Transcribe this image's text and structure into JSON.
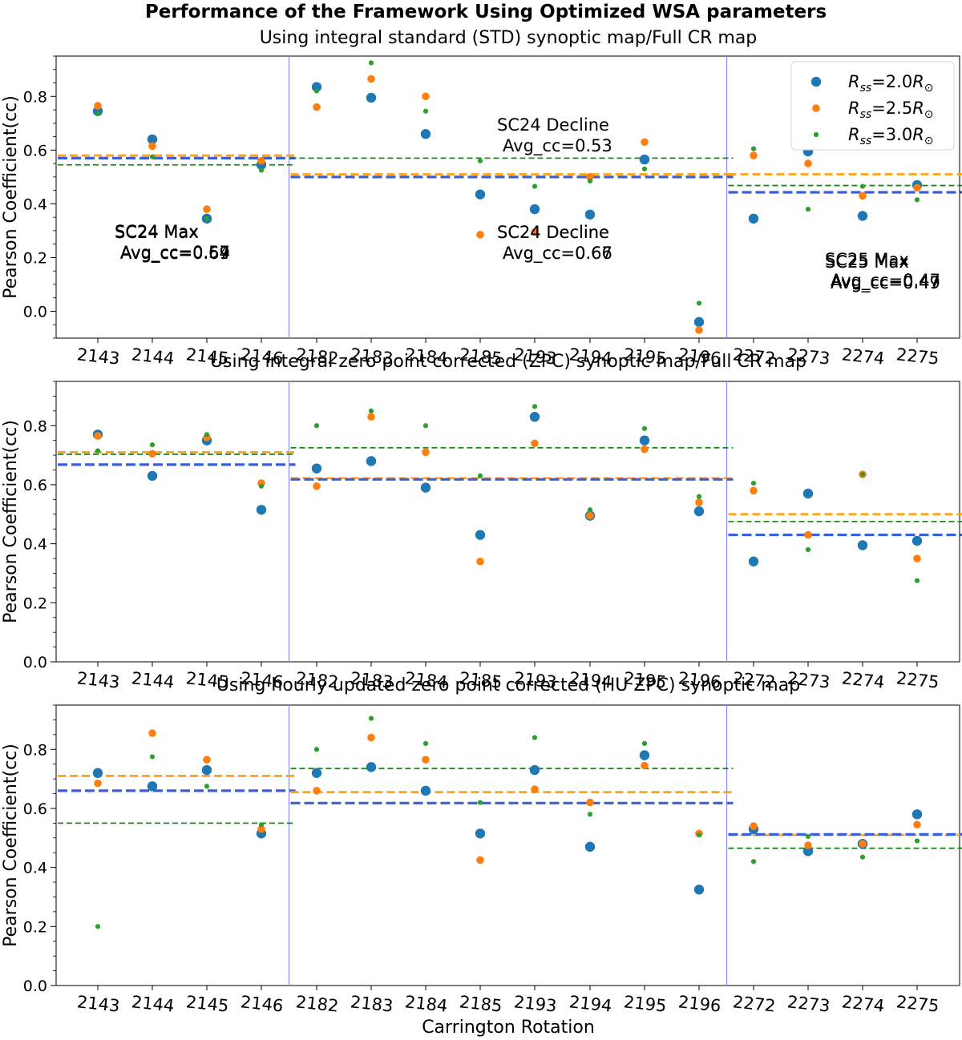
{
  "figure_title": "Performance of the Framework Using Optimized WSA parameters",
  "xlabel": "Carrington Rotation",
  "ylabel": "Pearson Coefficient(cc)",
  "colors": {
    "r20": "#1f77b4",
    "r25": "#ff7f0e",
    "r30": "#2ca02c",
    "mean20": "#3a5fd9",
    "mean25": "#ffa31a",
    "mean30": "#1a8a1a",
    "separator": "#8a8af0"
  },
  "legend": [
    "2.0",
    "2.5",
    "3.0"
  ],
  "legend_position": "top-right",
  "chart_data": [
    {
      "type": "scatter",
      "title": "Using integral standard (STD) synoptic map/Full CR map",
      "ylim": [
        -0.1,
        0.95
      ],
      "yticks": [
        "0.0",
        "0.2",
        "0.4",
        "0.6",
        "0.8"
      ],
      "categories": [
        "2143",
        "2144",
        "2145",
        "2146",
        "2182",
        "2183",
        "2184",
        "2185",
        "2193",
        "2194",
        "2195",
        "2196",
        "2272",
        "2273",
        "2274",
        "2275"
      ],
      "series": [
        {
          "name": "Rss=2.0",
          "values": [
            0.745,
            0.64,
            0.345,
            0.545,
            0.835,
            0.795,
            0.66,
            0.435,
            0.38,
            0.36,
            0.565,
            -0.04,
            0.345,
            0.595,
            0.355,
            0.47
          ]
        },
        {
          "name": "Rss=2.5",
          "values": [
            0.765,
            0.615,
            0.38,
            0.56,
            0.76,
            0.865,
            0.8,
            0.285,
            0.295,
            0.5,
            0.63,
            -0.07,
            0.58,
            0.55,
            0.43,
            0.46
          ]
        },
        {
          "name": "Rss=3.0",
          "values": [
            0.735,
            0.575,
            0.345,
            0.525,
            0.82,
            0.925,
            0.745,
            0.56,
            0.465,
            0.485,
            0.53,
            0.03,
            0.605,
            0.38,
            0.465,
            0.415
          ]
        }
      ],
      "phases": [
        {
          "label": "SC24 Max",
          "avg": "Avg_cc=0.57",
          "mean_values": [
            0.57,
            0.58,
            0.545
          ]
        },
        {
          "label": "SC24 Decline",
          "avg": "Avg_cc=0.53",
          "mean_values": [
            0.5,
            0.51,
            0.57
          ]
        },
        {
          "label": "SC25 Max",
          "avg": "Avg_cc=0.47",
          "mean_values": [
            0.443,
            0.51,
            0.468
          ]
        }
      ]
    },
    {
      "type": "scatter",
      "title": "Using integral zero point corrected (ZPC) synoptic map/Full CR map",
      "ylim": [
        0.0,
        0.95
      ],
      "yticks": [
        "0.0",
        "0.2",
        "0.4",
        "0.6",
        "0.8"
      ],
      "categories": [
        "2143",
        "2144",
        "2145",
        "2146",
        "2182",
        "2183",
        "2184",
        "2185",
        "2193",
        "2194",
        "2195",
        "2196",
        "2272",
        "2273",
        "2274",
        "2275"
      ],
      "series": [
        {
          "name": "Rss=2.0",
          "values": [
            0.77,
            0.63,
            0.75,
            0.515,
            0.655,
            0.68,
            0.59,
            0.43,
            0.83,
            0.495,
            0.75,
            0.51,
            0.34,
            0.57,
            0.395,
            0.41
          ]
        },
        {
          "name": "Rss=2.5",
          "values": [
            0.765,
            0.705,
            0.76,
            0.605,
            0.595,
            0.83,
            0.71,
            0.34,
            0.74,
            0.495,
            0.72,
            0.54,
            0.58,
            0.43,
            0.635,
            0.35
          ]
        },
        {
          "name": "Rss=3.0",
          "values": [
            0.715,
            0.735,
            0.77,
            0.595,
            0.8,
            0.85,
            0.8,
            0.63,
            0.865,
            0.515,
            0.79,
            0.56,
            0.605,
            0.38,
            0.635,
            0.275
          ]
        }
      ],
      "phases": [
        {
          "label": "SC24 Max",
          "avg": "Avg_cc=0.69",
          "mean_values": [
            0.668,
            0.71,
            0.703
          ]
        },
        {
          "label": "SC24 Decline",
          "avg": "Avg_cc=0.66",
          "mean_values": [
            0.618,
            0.622,
            0.725
          ]
        },
        {
          "label": "SC25 Max",
          "avg": "Avg_cc=0.47",
          "mean_values": [
            0.43,
            0.5,
            0.475
          ]
        }
      ]
    },
    {
      "type": "scatter",
      "title": "Using hourly updated zero point corrected (HU ZPC) synoptic map",
      "ylim": [
        0.0,
        0.95
      ],
      "yticks": [
        "0.0",
        "0.2",
        "0.4",
        "0.6",
        "0.8"
      ],
      "categories": [
        "2143",
        "2144",
        "2145",
        "2146",
        "2182",
        "2183",
        "2184",
        "2185",
        "2193",
        "2194",
        "2195",
        "2196",
        "2272",
        "2273",
        "2274",
        "2275"
      ],
      "series": [
        {
          "name": "Rss=2.0",
          "values": [
            0.72,
            0.675,
            0.73,
            0.515,
            0.72,
            0.74,
            0.66,
            0.515,
            0.73,
            0.47,
            0.78,
            0.325,
            0.53,
            0.455,
            0.48,
            0.58
          ]
        },
        {
          "name": "Rss=2.5",
          "values": [
            0.685,
            0.855,
            0.765,
            0.53,
            0.66,
            0.84,
            0.765,
            0.425,
            0.665,
            0.62,
            0.745,
            0.515,
            0.54,
            0.475,
            0.48,
            0.545
          ]
        },
        {
          "name": "Rss=3.0",
          "values": [
            0.2,
            0.775,
            0.675,
            0.545,
            0.8,
            0.905,
            0.82,
            0.62,
            0.84,
            0.58,
            0.82,
            0.51,
            0.42,
            0.505,
            0.435,
            0.49
          ]
        }
      ],
      "phases": [
        {
          "label": "SC24 Max",
          "avg": "Avg_cc=0.64",
          "mean_values": [
            0.66,
            0.71,
            0.55
          ]
        },
        {
          "label": "SC24 Decline",
          "avg": "Avg_cc=0.67",
          "mean_values": [
            0.618,
            0.655,
            0.735
          ]
        },
        {
          "label": "SC25 Max",
          "avg": "Avg_cc=0.49",
          "mean_values": [
            0.512,
            0.51,
            0.465
          ]
        }
      ]
    }
  ]
}
